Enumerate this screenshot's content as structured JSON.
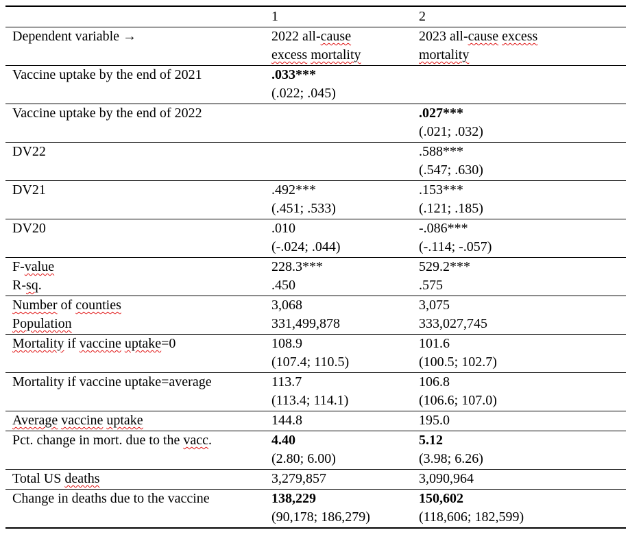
{
  "table": {
    "squiggle_color": "#e01010",
    "text_color": "#000000",
    "rule_color": "#000000",
    "columns": [
      "",
      "1",
      "2"
    ],
    "rows": [
      {
        "cells": [
          {
            "lines": [
              [
                {
                  "t": "Dependent variable →"
                }
              ]
            ]
          },
          {
            "lines": [
              [
                {
                  "t": "2022 all-"
                },
                {
                  "t": "cause",
                  "m": true
                }
              ],
              [
                {
                  "t": "excess",
                  "m": true
                },
                {
                  "t": " "
                },
                {
                  "t": "mortality",
                  "m": true
                }
              ]
            ]
          },
          {
            "lines": [
              [
                {
                  "t": "2023 all-"
                },
                {
                  "t": "cause",
                  "m": true
                },
                {
                  "t": " "
                },
                {
                  "t": "excess",
                  "m": true
                }
              ],
              [
                {
                  "t": "mortality",
                  "m": true
                }
              ]
            ]
          }
        ]
      },
      {
        "cells": [
          {
            "lines": [
              [
                {
                  "t": "Vaccine uptake by the end of 2021"
                }
              ]
            ]
          },
          {
            "lines": [
              [
                {
                  "t": ".033***",
                  "b": true
                }
              ],
              [
                {
                  "t": "(.022; .045)"
                }
              ]
            ]
          },
          {
            "lines": []
          }
        ]
      },
      {
        "cells": [
          {
            "lines": [
              [
                {
                  "t": "Vaccine uptake by the end of 2022"
                }
              ]
            ]
          },
          {
            "lines": []
          },
          {
            "lines": [
              [
                {
                  "t": ".027***",
                  "b": true
                }
              ],
              [
                {
                  "t": "(.021; .032)"
                }
              ]
            ]
          }
        ]
      },
      {
        "cells": [
          {
            "lines": [
              [
                {
                  "t": "DV22"
                }
              ]
            ]
          },
          {
            "lines": []
          },
          {
            "lines": [
              [
                {
                  "t": ".588***"
                }
              ],
              [
                {
                  "t": "(.547; .630)"
                }
              ]
            ]
          }
        ]
      },
      {
        "cells": [
          {
            "lines": [
              [
                {
                  "t": "DV21"
                }
              ]
            ]
          },
          {
            "lines": [
              [
                {
                  "t": ".492***"
                }
              ],
              [
                {
                  "t": "(.451; .533)"
                }
              ]
            ]
          },
          {
            "lines": [
              [
                {
                  "t": ".153***"
                }
              ],
              [
                {
                  "t": "(.121; .185)"
                }
              ]
            ]
          }
        ]
      },
      {
        "cells": [
          {
            "lines": [
              [
                {
                  "t": "DV20"
                }
              ]
            ]
          },
          {
            "lines": [
              [
                {
                  "t": ".010"
                }
              ],
              [
                {
                  "t": "(-.024; .044)"
                }
              ]
            ]
          },
          {
            "lines": [
              [
                {
                  "t": "-.086***"
                }
              ],
              [
                {
                  "t": "(-.114; -.057)"
                }
              ]
            ]
          }
        ]
      },
      {
        "cells": [
          {
            "lines": [
              [
                {
                  "t": "F-"
                },
                {
                  "t": "value",
                  "m": true
                }
              ],
              [
                {
                  "t": "R-"
                },
                {
                  "t": "sq",
                  "m": true
                },
                {
                  "t": "."
                }
              ]
            ]
          },
          {
            "lines": [
              [
                {
                  "t": "228.3***"
                }
              ],
              [
                {
                  "t": ".450"
                }
              ]
            ]
          },
          {
            "lines": [
              [
                {
                  "t": "529.2***"
                }
              ],
              [
                {
                  "t": ".575"
                }
              ]
            ]
          }
        ]
      },
      {
        "cells": [
          {
            "lines": [
              [
                {
                  "t": "Number",
                  "m": true
                },
                {
                  "t": " of "
                },
                {
                  "t": "counties",
                  "m": true
                }
              ],
              [
                {
                  "t": "Population",
                  "m": true
                }
              ]
            ]
          },
          {
            "lines": [
              [
                {
                  "t": "3,068"
                }
              ],
              [
                {
                  "t": "331,499,878"
                }
              ]
            ]
          },
          {
            "lines": [
              [
                {
                  "t": "3,075"
                }
              ],
              [
                {
                  "t": "333,027,745"
                }
              ]
            ]
          }
        ]
      },
      {
        "cells": [
          {
            "lines": [
              [
                {
                  "t": "Mortality",
                  "m": true
                },
                {
                  "t": " if "
                },
                {
                  "t": "vaccine",
                  "m": true
                },
                {
                  "t": " "
                },
                {
                  "t": "uptake",
                  "m": true
                },
                {
                  "t": "=0"
                }
              ]
            ]
          },
          {
            "lines": [
              [
                {
                  "t": "108.9"
                }
              ],
              [
                {
                  "t": "(107.4; 110.5)"
                }
              ]
            ]
          },
          {
            "lines": [
              [
                {
                  "t": "101.6"
                }
              ],
              [
                {
                  "t": "(100.5; 102.7)"
                }
              ]
            ]
          }
        ]
      },
      {
        "cells": [
          {
            "lines": [
              [
                {
                  "t": "Mortality if vaccine uptake=average"
                }
              ]
            ]
          },
          {
            "lines": [
              [
                {
                  "t": "113.7"
                }
              ],
              [
                {
                  "t": "(113.4; 114.1)"
                }
              ]
            ]
          },
          {
            "lines": [
              [
                {
                  "t": "106.8"
                }
              ],
              [
                {
                  "t": "(106.6; 107.0)"
                }
              ]
            ]
          }
        ]
      },
      {
        "cells": [
          {
            "lines": [
              [
                {
                  "t": "Average",
                  "m": true
                },
                {
                  "t": " "
                },
                {
                  "t": "vaccine",
                  "m": true
                },
                {
                  "t": " "
                },
                {
                  "t": "uptake",
                  "m": true
                }
              ]
            ]
          },
          {
            "lines": [
              [
                {
                  "t": "144.8"
                }
              ]
            ]
          },
          {
            "lines": [
              [
                {
                  "t": "195.0"
                }
              ]
            ]
          }
        ]
      },
      {
        "cells": [
          {
            "lines": [
              [
                {
                  "t": "Pct. change in mort. due to the "
                },
                {
                  "t": "vacc",
                  "m": true
                },
                {
                  "t": "."
                }
              ]
            ]
          },
          {
            "lines": [
              [
                {
                  "t": "4.40",
                  "b": true
                }
              ],
              [
                {
                  "t": "(2.80; 6.00)"
                }
              ]
            ]
          },
          {
            "lines": [
              [
                {
                  "t": "5.12",
                  "b": true
                }
              ],
              [
                {
                  "t": "(3.98; 6.26)"
                }
              ]
            ]
          }
        ]
      },
      {
        "cells": [
          {
            "lines": [
              [
                {
                  "t": "Total US "
                },
                {
                  "t": "deaths",
                  "m": true
                }
              ]
            ]
          },
          {
            "lines": [
              [
                {
                  "t": "3,279,857"
                }
              ]
            ]
          },
          {
            "lines": [
              [
                {
                  "t": "3,090,964"
                }
              ]
            ]
          }
        ]
      },
      {
        "cells": [
          {
            "lines": [
              [
                {
                  "t": "Change in deaths due to the vaccine"
                }
              ]
            ]
          },
          {
            "lines": [
              [
                {
                  "t": "138,229",
                  "b": true
                }
              ],
              [
                {
                  "t": "(90,178; 186,279)"
                }
              ]
            ]
          },
          {
            "lines": [
              [
                {
                  "t": "150,602",
                  "b": true
                }
              ],
              [
                {
                  "t": "(118,606; 182,599)"
                }
              ]
            ]
          }
        ]
      }
    ]
  }
}
